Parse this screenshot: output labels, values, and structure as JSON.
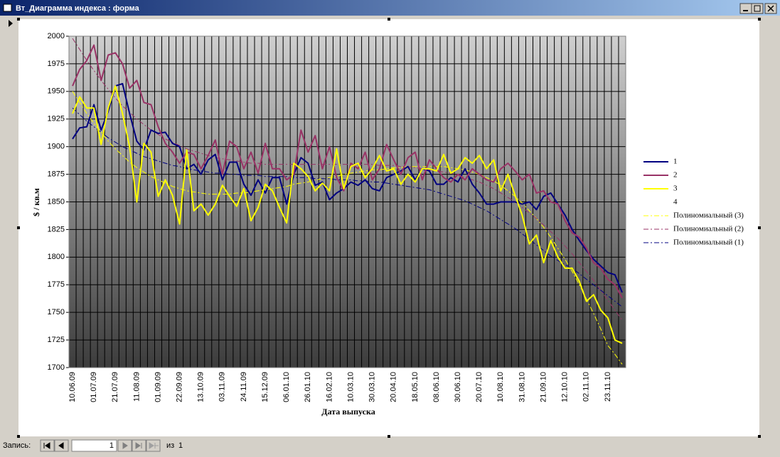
{
  "window": {
    "title": "Вт_Диаграмма индекса : форма"
  },
  "navigation": {
    "label": "Запись:",
    "record": 1,
    "of_label": "из",
    "total": 1
  },
  "chart_data": {
    "type": "line",
    "x_label": "Дата выпуска",
    "y_label": "$ / кв.м",
    "categories": [
      "10.06.09",
      null,
      null,
      "01.07.09",
      null,
      null,
      "21.07.09",
      null,
      null,
      "11.08.09",
      null,
      null,
      "01.09.09",
      null,
      null,
      "22.09.09",
      null,
      null,
      "13.10.09",
      null,
      null,
      "03.11.09",
      null,
      null,
      "24.11.09",
      null,
      null,
      "15.12.09",
      null,
      null,
      "06.01.10",
      null,
      null,
      "26.01.10",
      null,
      null,
      "16.02.10",
      null,
      null,
      "10.03.10",
      null,
      null,
      "30.03.10",
      null,
      null,
      "20.04.10",
      null,
      null,
      "18.05.10",
      null,
      null,
      "08.06.10",
      null,
      null,
      "30.06.10",
      null,
      null,
      "20.07.10",
      null,
      null,
      "10.08.10",
      null,
      null,
      "31.08.10",
      null,
      null,
      "21.09.10",
      null,
      null,
      "12.10.10",
      null,
      null,
      "02.11.10",
      null,
      null,
      "23.11.10",
      null,
      null
    ],
    "ylim": [
      1700,
      2000
    ],
    "yticks": [
      1700,
      1725,
      1750,
      1775,
      1800,
      1825,
      1850,
      1875,
      1900,
      1925,
      1950,
      1975,
      2000
    ],
    "grid": true,
    "legend": "right",
    "series": [
      {
        "name": "1",
        "color": "#000080",
        "dash": false,
        "values": [
          1907,
          1917,
          1918,
          1938,
          1915,
          1932,
          1955,
          1957,
          1930,
          1905,
          1897,
          1915,
          1912,
          1913,
          1903,
          1900,
          1880,
          1884,
          1875,
          1888,
          1893,
          1870,
          1886,
          1886,
          1866,
          1856,
          1870,
          1858,
          1872,
          1872,
          1848,
          1875,
          1890,
          1885,
          1865,
          1868,
          1852,
          1858,
          1862,
          1868,
          1865,
          1870,
          1862,
          1860,
          1872,
          1875,
          1878,
          1882,
          1870,
          1880,
          1878,
          1866,
          1866,
          1872,
          1868,
          1880,
          1866,
          1858,
          1848,
          1848,
          1850,
          1850,
          1850,
          1848,
          1850,
          1843,
          1855,
          1858,
          1848,
          1838,
          1825,
          1815,
          1806,
          1798,
          1792,
          1786,
          1784,
          1768
        ]
      },
      {
        "name": "2",
        "color": "#993366",
        "dash": false,
        "values": [
          1955,
          1970,
          1978,
          1992,
          1960,
          1983,
          1985,
          1975,
          1953,
          1960,
          1940,
          1938,
          1918,
          1903,
          1895,
          1885,
          1895,
          1893,
          1880,
          1892,
          1906,
          1875,
          1905,
          1900,
          1880,
          1895,
          1876,
          1903,
          1880,
          1880,
          1870,
          1875,
          1915,
          1895,
          1910,
          1880,
          1900,
          1872,
          1860,
          1885,
          1880,
          1895,
          1870,
          1880,
          1902,
          1888,
          1875,
          1890,
          1895,
          1870,
          1888,
          1880,
          1872,
          1868,
          1875,
          1870,
          1880,
          1875,
          1870,
          1868,
          1880,
          1885,
          1878,
          1870,
          1875,
          1858,
          1860,
          1850,
          1848,
          1833,
          1822,
          1818,
          1808,
          1795,
          1790,
          1780,
          1775,
          1763
        ]
      },
      {
        "name": "3",
        "color": "#ffff00",
        "dash": false,
        "values": [
          1930,
          1945,
          1935,
          1935,
          1902,
          1935,
          1955,
          1930,
          1900,
          1850,
          1903,
          1895,
          1855,
          1870,
          1856,
          1830,
          1897,
          1842,
          1848,
          1838,
          1848,
          1865,
          1855,
          1846,
          1862,
          1833,
          1845,
          1866,
          1860,
          1845,
          1831,
          1885,
          1880,
          1873,
          1860,
          1867,
          1860,
          1898,
          1862,
          1882,
          1885,
          1872,
          1880,
          1892,
          1878,
          1880,
          1866,
          1875,
          1868,
          1880,
          1880,
          1878,
          1893,
          1876,
          1880,
          1890,
          1885,
          1892,
          1880,
          1888,
          1860,
          1875,
          1856,
          1838,
          1812,
          1820,
          1795,
          1815,
          1800,
          1790,
          1790,
          1778,
          1760,
          1766,
          1752,
          1745,
          1725,
          1722
        ]
      },
      {
        "name": "4",
        "color": "#ffffff",
        "dash": false,
        "values": [
          null,
          null,
          null,
          null,
          null,
          null,
          null,
          null,
          null,
          null,
          null,
          null,
          null,
          null,
          null,
          null,
          null,
          null,
          null,
          null,
          null,
          null,
          null,
          null,
          null,
          null,
          null,
          null,
          null,
          null,
          null,
          null,
          null,
          null,
          null,
          null,
          null,
          null,
          null,
          null,
          null,
          null,
          null,
          null,
          null,
          null,
          null,
          null,
          null,
          null,
          null,
          null,
          null,
          null,
          null,
          null,
          null,
          null,
          null,
          null,
          null,
          null,
          null,
          null,
          null,
          null,
          null,
          null,
          null,
          null,
          null,
          null,
          null,
          null,
          null,
          null,
          null,
          null
        ]
      },
      {
        "name": "Полиномиальный (3)",
        "color": "#ffff00",
        "dash": true,
        "values": [
          1950,
          1940,
          1930,
          1921,
          1913,
          1905,
          1898,
          1892,
          1886,
          1881,
          1877,
          1873,
          1870,
          1867,
          1864,
          1862,
          1860,
          1859,
          1858,
          1857,
          1857,
          1857,
          1857,
          1858,
          1858,
          1859,
          1860,
          1861,
          1862,
          1863,
          1864,
          1866,
          1867,
          1868,
          1870,
          1871,
          1872,
          1873,
          1875,
          1876,
          1877,
          1878,
          1879,
          1879,
          1880,
          1881,
          1881,
          1882,
          1882,
          1882,
          1882,
          1882,
          1882,
          1881,
          1880,
          1879,
          1877,
          1875,
          1872,
          1869,
          1865,
          1860,
          1855,
          1849,
          1842,
          1835,
          1827,
          1818,
          1808,
          1798,
          1787,
          1775,
          1762,
          1749,
          1735,
          1720,
          1712,
          1703
        ]
      },
      {
        "name": "Полиномиальный (2)",
        "color": "#993366",
        "dash": true,
        "values": [
          1998,
          1988,
          1978,
          1969,
          1960,
          1952,
          1944,
          1937,
          1931,
          1925,
          1920,
          1915,
          1911,
          1907,
          1904,
          1901,
          1898,
          1896,
          1894,
          1892,
          1890,
          1889,
          1888,
          1887,
          1886,
          1885,
          1885,
          1884,
          1884,
          1884,
          1884,
          1884,
          1884,
          1884,
          1884,
          1884,
          1884,
          1884,
          1884,
          1884,
          1884,
          1884,
          1884,
          1883,
          1883,
          1883,
          1882,
          1882,
          1881,
          1880,
          1879,
          1878,
          1877,
          1876,
          1874,
          1872,
          1870,
          1868,
          1865,
          1862,
          1858,
          1854,
          1850,
          1845,
          1840,
          1835,
          1829,
          1823,
          1817,
          1810,
          1803,
          1795,
          1787,
          1779,
          1770,
          1761,
          1752,
          1743
        ]
      },
      {
        "name": "Полиномиальный (1)",
        "color": "#000080",
        "dash": true,
        "values": [
          1935,
          1929,
          1923,
          1918,
          1913,
          1908,
          1904,
          1900,
          1897,
          1894,
          1891,
          1889,
          1887,
          1885,
          1883,
          1882,
          1880,
          1879,
          1878,
          1877,
          1876,
          1876,
          1875,
          1875,
          1874,
          1874,
          1874,
          1873,
          1873,
          1873,
          1873,
          1872,
          1872,
          1872,
          1871,
          1871,
          1871,
          1870,
          1870,
          1870,
          1869,
          1869,
          1868,
          1868,
          1867,
          1866,
          1865,
          1864,
          1863,
          1862,
          1861,
          1859,
          1857,
          1855,
          1853,
          1851,
          1848,
          1845,
          1842,
          1838,
          1834,
          1830,
          1826,
          1821,
          1816,
          1811,
          1806,
          1801,
          1797,
          1793,
          1790,
          1785,
          1780,
          1775,
          1770,
          1765,
          1760,
          1755
        ]
      }
    ]
  }
}
